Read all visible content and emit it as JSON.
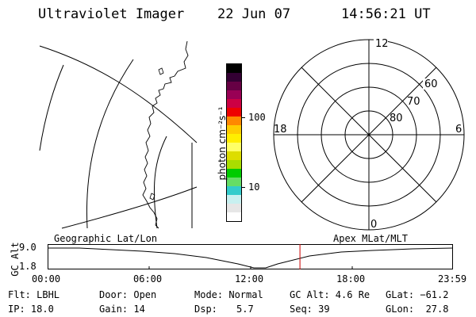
{
  "header": {
    "title": "Ultraviolet Imager",
    "date": "22 Jun 07",
    "time": "14:56:21 UT"
  },
  "colorbar": {
    "label": "photon cm⁻²s⁻¹",
    "ticks": [
      "100",
      "10"
    ],
    "colors": [
      "#ffffff",
      "#e6e6e6",
      "#c8f0f0",
      "#33cccc",
      "#66dd66",
      "#00cc00",
      "#aadd00",
      "#dddd00",
      "#ffff66",
      "#ffee00",
      "#ffcc00",
      "#ff8800",
      "#ee0000",
      "#cc0044",
      "#990055",
      "#660044",
      "#330033",
      "#000000"
    ]
  },
  "polar": {
    "clock_labels": {
      "top": "12",
      "right": "6",
      "bottom": "0",
      "left": "18"
    },
    "lat_labels": [
      "60",
      "70",
      "80"
    ]
  },
  "timeline": {
    "left_label": "Geographic Lat/Lon",
    "right_label": "Apex MLat/MLT",
    "y_label": "GC Alt",
    "y_ticks": [
      "9.0",
      "1.8"
    ],
    "x_ticks": [
      "00:00",
      "06:00",
      "12:00",
      "18:00",
      "23:59"
    ],
    "current_time_hours": 14.94
  },
  "footer": {
    "flt": "Flt: LBHL",
    "door": "Door: Open",
    "mode": "Mode: Normal",
    "gc_alt": "GC Alt: 4.6 Re",
    "glat": "GLat: −61.2",
    "ip": "IP: 18.0",
    "gain": "Gain: 14",
    "dsp_label": "Dsp:",
    "dsp_value": "5.7",
    "seq": "Seq: 39",
    "glon": "GLon:  27.8"
  }
}
